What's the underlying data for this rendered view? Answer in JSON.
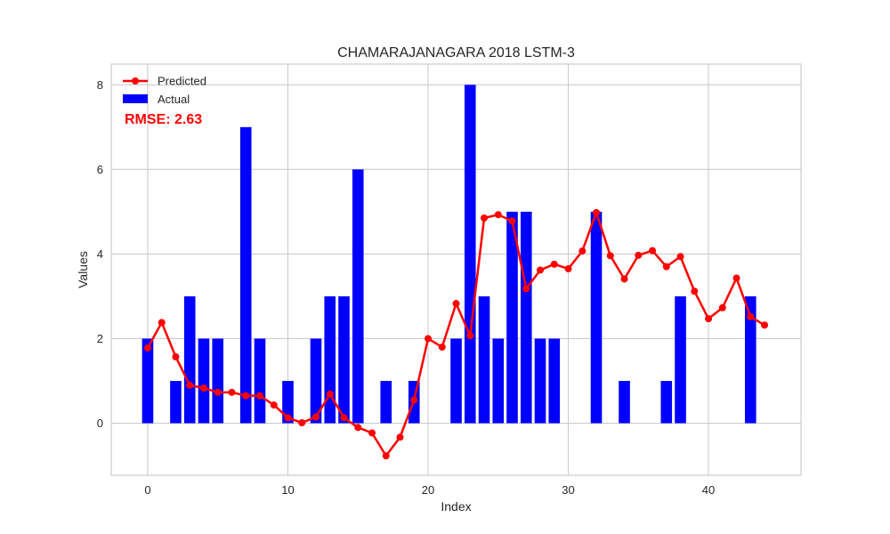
{
  "chart_data": {
    "type": "bar",
    "title": "CHAMARAJANAGARA 2018 LSTM-3",
    "xlabel": "Index",
    "ylabel": "Values",
    "xlim": [
      -2.6,
      46.6
    ],
    "ylim": [
      -1.23,
      8.49
    ],
    "x_ticks": [
      0,
      10,
      20,
      30,
      40
    ],
    "y_ticks": [
      0,
      2,
      4,
      6,
      8
    ],
    "grid": true,
    "legend_position": "top-left",
    "annotation": "RMSE: 2.63",
    "series": [
      {
        "name": "Predicted",
        "type": "line",
        "color": "#ff0000",
        "x": [
          0,
          1,
          2,
          3,
          4,
          5,
          6,
          7,
          8,
          9,
          10,
          11,
          12,
          13,
          14,
          15,
          16,
          17,
          18,
          19,
          20,
          21,
          22,
          23,
          24,
          25,
          26,
          27,
          28,
          29,
          30,
          31,
          32,
          33,
          34,
          35,
          36,
          37,
          38,
          39,
          40,
          41,
          42,
          43,
          44
        ],
        "values": [
          1.78,
          2.38,
          1.57,
          0.9,
          0.83,
          0.73,
          0.73,
          0.65,
          0.65,
          0.43,
          0.13,
          0.01,
          0.15,
          0.69,
          0.13,
          -0.1,
          -0.23,
          -0.77,
          -0.33,
          0.55,
          2.0,
          1.8,
          2.83,
          2.07,
          4.85,
          4.93,
          4.78,
          3.18,
          3.62,
          3.76,
          3.65,
          4.07,
          4.98,
          3.96,
          3.41,
          3.97,
          4.08,
          3.7,
          3.94,
          3.12,
          2.47,
          2.73,
          3.43,
          2.52,
          2.32
        ]
      },
      {
        "name": "Actual",
        "type": "bar",
        "color": "#0000ff",
        "x": [
          0,
          1,
          2,
          3,
          4,
          5,
          6,
          7,
          8,
          9,
          10,
          11,
          12,
          13,
          14,
          15,
          16,
          17,
          18,
          19,
          20,
          21,
          22,
          23,
          24,
          25,
          26,
          27,
          28,
          29,
          30,
          31,
          32,
          33,
          34,
          35,
          36,
          37,
          38,
          39,
          40,
          41,
          42,
          43,
          44
        ],
        "values": [
          2,
          0,
          1,
          3,
          2,
          2,
          0,
          7,
          2,
          0,
          1,
          0,
          2,
          3,
          3,
          6,
          0,
          1,
          0,
          1,
          0,
          0,
          2,
          8,
          3,
          2,
          5,
          5,
          2,
          2,
          0,
          0,
          5,
          0,
          1,
          0,
          0,
          1,
          3,
          0,
          0,
          0,
          0,
          3,
          0
        ]
      }
    ]
  }
}
